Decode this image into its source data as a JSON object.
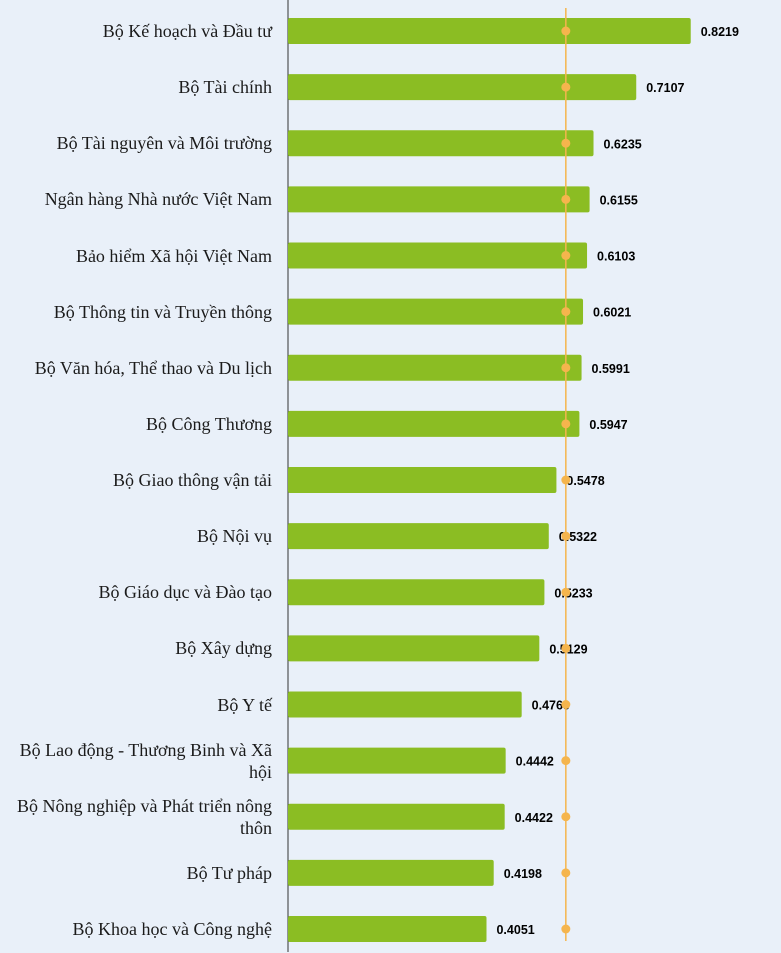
{
  "colors": {
    "bar": "#8bbd23",
    "average_line": "#f5b54d",
    "axis": "#333333",
    "background": "#e9f0f9"
  },
  "chart_data": {
    "type": "bar",
    "orientation": "horizontal",
    "categories": [
      "Bộ Kế hoạch và Đầu tư",
      "Bộ Tài chính",
      "Bộ Tài nguyên và Môi trường",
      "Ngân hàng Nhà nước Việt Nam",
      "Bảo hiểm Xã hội Việt Nam",
      "Bộ Thông tin và Truyền thông",
      "Bộ Văn hóa, Thể thao và Du lịch",
      "Bộ Công Thương",
      "Bộ Giao thông vận tải",
      "Bộ Nội vụ",
      "Bộ Giáo dục và Đào tạo",
      "Bộ Xây dựng",
      "Bộ Y tế",
      "Bộ Lao động - Thương Binh và Xã hội",
      "Bộ Nông nghiệp và Phát triển nông thôn",
      "Bộ Tư pháp",
      "Bộ Khoa học và Công nghệ"
    ],
    "values": [
      0.8219,
      0.7107,
      0.6235,
      0.6155,
      0.6103,
      0.6021,
      0.5991,
      0.5947,
      0.5478,
      0.5322,
      0.5233,
      0.5129,
      0.4769,
      0.4442,
      0.4422,
      0.4198,
      0.4051
    ],
    "value_labels": [
      "0.8219",
      "0.7107",
      "0.6235",
      "0.6155",
      "0.6103",
      "0.6021",
      "0.5991",
      "0.5947",
      "0.5478",
      "0.5322",
      "0.5233",
      "0.5129",
      "0.4769",
      "0.4442",
      "0.4422",
      "0.4198",
      "0.4051"
    ],
    "average_line_value": 0.567,
    "xlim": [
      0,
      0.83
    ],
    "grid": false,
    "legend": "none"
  }
}
